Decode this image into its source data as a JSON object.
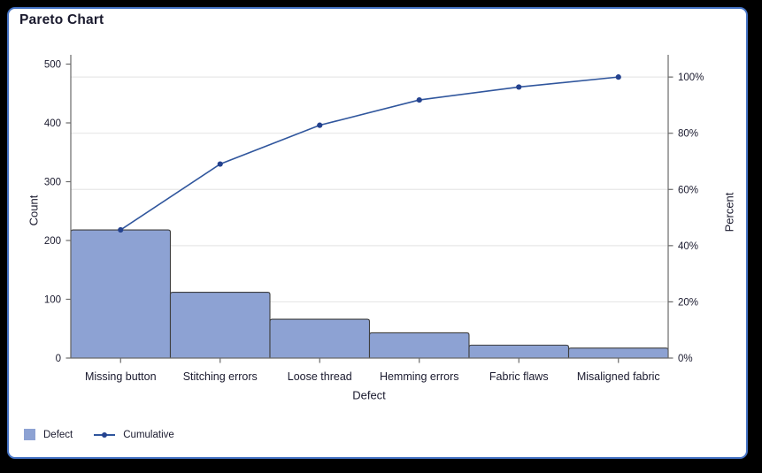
{
  "window": {
    "title": "Pareto Chart"
  },
  "chart_data": {
    "type": "pareto (bar + cumulative line)",
    "title": "Pareto Chart",
    "categories": [
      "Missing button",
      "Stitching errors",
      "Loose thread",
      "Hemming errors",
      "Fabric flaws",
      "Misaligned fabric"
    ],
    "series": [
      {
        "name": "Defect",
        "type": "bar",
        "values": [
          218,
          112,
          66,
          43,
          22,
          17
        ]
      },
      {
        "name": "Cumulative",
        "type": "line",
        "cumulative_counts": [
          218,
          330,
          396,
          439,
          461,
          478
        ],
        "cumulative_percent": [
          45.6,
          69.0,
          82.8,
          91.8,
          96.4,
          100.0
        ]
      }
    ],
    "total_count": 478,
    "xlabel": "Defect",
    "ylabel_left": "Count",
    "ylabel_right": "Percent",
    "left_axis": {
      "min": 0,
      "max": 500,
      "tick_values": [
        0,
        100,
        200,
        300,
        400,
        500
      ],
      "tick_labels": [
        "0",
        "100",
        "200",
        "300",
        "400",
        "500"
      ]
    },
    "right_axis": {
      "tick_percents": [
        0,
        20,
        40,
        60,
        80,
        100
      ],
      "tick_labels": [
        "0%",
        "20%",
        "40%",
        "60%",
        "80%",
        "100%"
      ]
    },
    "grid": "horizontal gridlines at right-axis percent ticks",
    "legend_position": "bottom-left"
  },
  "legend": {
    "items": [
      {
        "label": "Defect",
        "marker": "bar-swatch"
      },
      {
        "label": "Cumulative",
        "marker": "line-with-dot"
      }
    ]
  },
  "colors": {
    "panel_border": "#4472C4",
    "bar_fill": "#8DA2D3",
    "bar_border": "#3F3F3F",
    "line": "#30569D",
    "marker": "#24428F",
    "grid": "#E7E7E7",
    "axis": "#6A6A6A",
    "text": "#1A1A2E"
  }
}
